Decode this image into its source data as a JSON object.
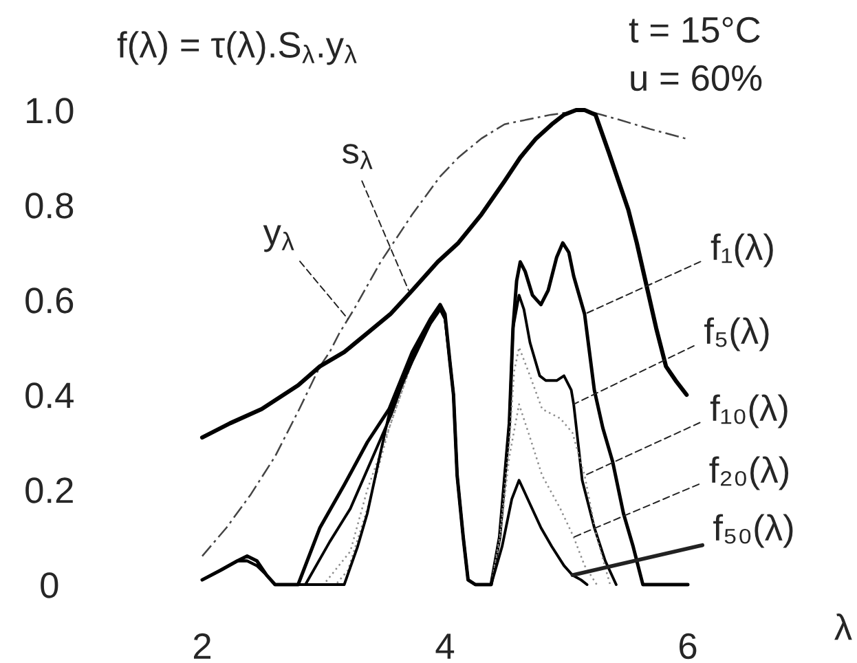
{
  "chart_data": {
    "type": "line",
    "title": "f(λ) = τ(λ).S$_{λ}$.y$_{λ}$",
    "xlabel": "λ",
    "xlim": [
      2,
      6
    ],
    "ylim": [
      0,
      1
    ],
    "xticks": [
      2,
      4,
      6
    ],
    "yticks": [
      0,
      0.2,
      0.4,
      0.6,
      0.8,
      {
        "value": 1,
        "label": "1.0"
      }
    ],
    "series": [
      {
        "color": "#444444",
        "line_style": "dashed",
        "x": [
          2.0,
          2.2,
          2.4,
          2.6,
          2.8,
          2.97,
          3.05,
          3.13,
          3.25,
          3.47,
          3.6,
          3.73,
          3.96,
          4.11,
          4.3,
          4.49,
          4.68,
          4.87,
          5.15,
          5.43,
          5.69,
          5.98
        ],
        "values": [
          0.06,
          0.12,
          0.19,
          0.27,
          0.37,
          0.46,
          0.49,
          0.53,
          0.58,
          0.68,
          0.73,
          0.78,
          0.86,
          0.9,
          0.94,
          0.97,
          0.98,
          0.99,
          1.0,
          0.98,
          0.96,
          0.94
        ]
      },
      {
        "color": "#000000",
        "line_style": "solid",
        "x": [
          2.0,
          2.23,
          2.49,
          2.79,
          2.97,
          3.17,
          3.36,
          3.55,
          3.73,
          3.94,
          4.11,
          4.3,
          4.49,
          4.62,
          4.75,
          4.88,
          4.98,
          5.08,
          5.15,
          5.24,
          5.35,
          5.43,
          5.51,
          5.58,
          5.66,
          5.74,
          5.82,
          5.9,
          5.99
        ],
        "values": [
          0.31,
          0.34,
          0.37,
          0.42,
          0.46,
          0.49,
          0.53,
          0.57,
          0.62,
          0.68,
          0.72,
          0.78,
          0.85,
          0.9,
          0.94,
          0.97,
          0.99,
          1.0,
          1.0,
          0.99,
          0.91,
          0.85,
          0.79,
          0.72,
          0.63,
          0.54,
          0.46,
          0.43,
          0.4
        ]
      },
      {
        "color": "#000000",
        "line_style": "solid",
        "x": [
          2.0,
          2.15,
          2.29,
          2.37,
          2.45,
          2.53,
          2.6,
          2.79,
          2.97,
          3.17,
          3.36,
          3.54,
          3.73,
          3.88,
          3.96,
          4.0,
          4.04,
          4.07,
          4.1,
          4.15,
          4.19,
          4.25,
          4.38,
          4.45,
          4.53,
          4.56,
          4.59,
          4.62,
          4.66,
          4.72,
          4.79,
          4.85,
          4.92,
          4.97,
          5.02,
          5.06,
          5.15,
          5.23,
          5.3,
          5.38,
          5.47,
          5.55,
          5.63,
          6.0
        ],
        "values": [
          0.01,
          0.03,
          0.05,
          0.06,
          0.05,
          0.02,
          0,
          0,
          0.12,
          0.21,
          0.3,
          0.37,
          0.49,
          0.56,
          0.59,
          0.57,
          0.47,
          0.4,
          0.23,
          0.1,
          0.01,
          0,
          0,
          0.1,
          0.34,
          0.54,
          0.64,
          0.68,
          0.66,
          0.61,
          0.59,
          0.62,
          0.69,
          0.72,
          0.7,
          0.65,
          0.57,
          0.41,
          0.33,
          0.26,
          0.15,
          0.08,
          0,
          0
        ]
      },
      {
        "color": "#000000",
        "line_style": "solid",
        "x": [
          2.0,
          2.15,
          2.29,
          2.37,
          2.45,
          2.53,
          2.6,
          2.85,
          3.05,
          3.22,
          3.39,
          3.56,
          3.73,
          3.88,
          3.96,
          4.0,
          4.04,
          4.07,
          4.1,
          4.15,
          4.19,
          4.25,
          4.38,
          4.45,
          4.53,
          4.56,
          4.61,
          4.65,
          4.7,
          4.78,
          4.83,
          4.92,
          4.98,
          5.04,
          5.06,
          5.1,
          5.13,
          5.23,
          5.32,
          5.41
        ],
        "values": [
          0.01,
          0.03,
          0.05,
          0.05,
          0.04,
          0.02,
          0,
          0,
          0.09,
          0.16,
          0.26,
          0.36,
          0.48,
          0.55,
          0.58,
          0.56,
          0.47,
          0.4,
          0.23,
          0.1,
          0.01,
          0,
          0,
          0.1,
          0.34,
          0.54,
          0.61,
          0.58,
          0.51,
          0.44,
          0.43,
          0.43,
          0.44,
          0.41,
          0.38,
          0.29,
          0.22,
          0.12,
          0.05,
          0
        ]
      },
      {
        "color": "#8c8c8c",
        "line_style": "dotted",
        "x": [
          2.0,
          2.15,
          2.29,
          2.37,
          2.45,
          2.53,
          2.6,
          3.0,
          3.22,
          3.36,
          3.54,
          3.73,
          3.88,
          3.96,
          4.0,
          4.04,
          4.07,
          4.1,
          4.15,
          4.19,
          4.25,
          4.38,
          4.45,
          4.53,
          4.57,
          4.61,
          4.7,
          4.8,
          4.95,
          5.05,
          5.15,
          5.25,
          5.36
        ],
        "values": [
          0.01,
          0.03,
          0.05,
          0.05,
          0.04,
          0.02,
          0,
          0,
          0.07,
          0.2,
          0.33,
          0.47,
          0.55,
          0.58,
          0.56,
          0.47,
          0.4,
          0.23,
          0.1,
          0.01,
          0,
          0,
          0.1,
          0.3,
          0.45,
          0.5,
          0.44,
          0.37,
          0.35,
          0.32,
          0.23,
          0.1,
          0
        ]
      },
      {
        "color": "#8c8c8c",
        "line_style": "dotted",
        "x": [
          2.0,
          2.15,
          2.29,
          2.37,
          2.45,
          2.53,
          2.6,
          3.1,
          3.2,
          3.36,
          3.54,
          3.73,
          3.88,
          3.96,
          4.0,
          4.04,
          4.07,
          4.1,
          4.15,
          4.19,
          4.25,
          4.38,
          4.45,
          4.53,
          4.61,
          4.7,
          4.8,
          4.95,
          5.06,
          5.15,
          5.25
        ],
        "values": [
          0.01,
          0.03,
          0.05,
          0.05,
          0.04,
          0.02,
          0,
          0,
          0.03,
          0.16,
          0.33,
          0.47,
          0.55,
          0.58,
          0.56,
          0.47,
          0.4,
          0.23,
          0.1,
          0.01,
          0,
          0,
          0.09,
          0.27,
          0.38,
          0.31,
          0.23,
          0.16,
          0.1,
          0.04,
          0
        ]
      },
      {
        "color": "#000000",
        "line_style": "solid",
        "x": [
          2.0,
          2.15,
          2.29,
          2.37,
          2.45,
          2.53,
          2.6,
          3.17,
          3.28,
          3.36,
          3.47,
          3.54,
          3.73,
          3.88,
          3.96,
          4.0,
          4.04,
          4.07,
          4.1,
          4.15,
          4.19,
          4.25,
          4.38,
          4.47,
          4.55,
          4.61,
          4.7,
          4.79,
          4.88,
          4.98,
          5.05,
          5.12,
          5.17
        ],
        "values": [
          0.01,
          0.03,
          0.05,
          0.05,
          0.04,
          0.02,
          0,
          0,
          0.08,
          0.15,
          0.28,
          0.36,
          0.47,
          0.55,
          0.58,
          0.56,
          0.47,
          0.4,
          0.23,
          0.1,
          0.01,
          0,
          0,
          0.08,
          0.18,
          0.22,
          0.17,
          0.12,
          0.08,
          0.04,
          0.02,
          0.01,
          0
        ]
      }
    ],
    "annotations": [
      "t = 15°C",
      "u = 60%",
      {
        "text": "y$_{λ}$",
        "x": 3.2,
        "y": 0.56
      },
      {
        "text": "s$_{λ}$",
        "x": 3.7,
        "y": 0.62
      },
      {
        "text": "f₁(λ)",
        "x": 5.15,
        "y": 0.57
      },
      {
        "text": "f₅(λ)",
        "x": 5.06,
        "y": 0.38
      },
      {
        "text": "f₁₀(λ)",
        "x": 5.15,
        "y": 0.23
      },
      {
        "text": "f₂₀(λ)",
        "x": 5.06,
        "y": 0.1
      },
      {
        "text": "f₅₀(λ)",
        "x": 5.05,
        "y": 0.02
      }
    ]
  }
}
